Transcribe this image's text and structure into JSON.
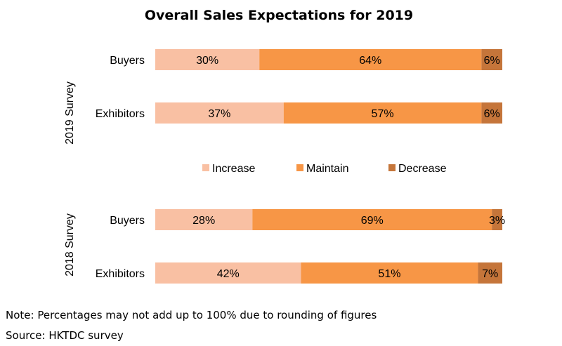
{
  "chart_data": {
    "type": "bar",
    "orientation": "horizontal",
    "stacked": true,
    "title": "Overall Sales Expectations for 2019",
    "groups": [
      {
        "label": "2019 Survey",
        "categories": [
          "Buyers",
          "Exhibitors"
        ]
      },
      {
        "label": "2018 Survey",
        "categories": [
          "Buyers",
          "Exhibitors"
        ]
      }
    ],
    "series": [
      {
        "name": "Increase",
        "color": "#F9C0A3",
        "values": [
          30,
          37,
          28,
          42
        ]
      },
      {
        "name": "Maintain",
        "color": "#F79646",
        "values": [
          64,
          57,
          69,
          51
        ]
      },
      {
        "name": "Decrease",
        "color": "#C5753A",
        "values": [
          6,
          6,
          3,
          7
        ]
      }
    ],
    "value_suffix": "%",
    "legend_position": "middle",
    "grid": false
  },
  "footnotes": {
    "note": "Note: Percentages may not add up to 100% due to rounding of figures",
    "source": "Source: HKTDC survey"
  }
}
